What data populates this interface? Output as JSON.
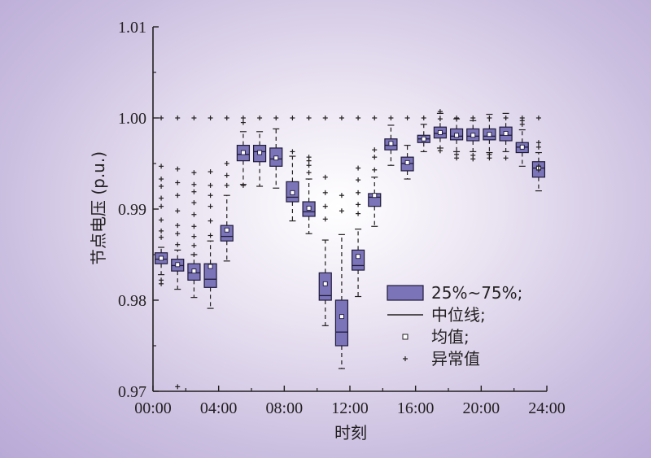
{
  "chart_data": {
    "type": "box",
    "xlabel": "时刻",
    "ylabel": "节点电压 (p.u.)",
    "ylim": [
      0.97,
      1.01
    ],
    "xlim": [
      0,
      24
    ],
    "yticks": [
      {
        "value": 0.97,
        "label": "0.97"
      },
      {
        "value": 0.98,
        "label": "0.98"
      },
      {
        "value": 0.99,
        "label": "0.99"
      },
      {
        "value": 1.0,
        "label": "1.00"
      },
      {
        "value": 1.01,
        "label": "1.01"
      }
    ],
    "xticks": [
      {
        "value": 0,
        "label": "00:00"
      },
      {
        "value": 4,
        "label": "04:00"
      },
      {
        "value": 8,
        "label": "08:00"
      },
      {
        "value": 12,
        "label": "12:00"
      },
      {
        "value": 16,
        "label": "16:00"
      },
      {
        "value": 20,
        "label": "20:00"
      },
      {
        "value": 24,
        "label": "24:00"
      }
    ],
    "box_color": "#7b74b8",
    "box_stroke": "#1f1a3a",
    "boxes": [
      {
        "x": 0.5,
        "wlow": 0.9828,
        "q1": 0.984,
        "median": 0.9845,
        "q3": 0.9852,
        "whigh": 0.9858,
        "mean": 0.9846,
        "outliers": [
          0.9822,
          0.9818,
          0.9869,
          0.9876,
          0.9888,
          0.9903,
          0.9912,
          0.9925,
          0.9933,
          0.9947,
          1.0
        ]
      },
      {
        "x": 1.5,
        "wlow": 0.9812,
        "q1": 0.9832,
        "median": 0.9838,
        "q3": 0.9845,
        "whigh": 0.9855,
        "mean": 0.9839,
        "outliers": [
          0.9705,
          0.9861,
          0.9873,
          0.9882,
          0.9898,
          0.9915,
          0.9929,
          0.9944,
          1.0
        ]
      },
      {
        "x": 2.5,
        "wlow": 0.9803,
        "q1": 0.9822,
        "median": 0.983,
        "q3": 0.984,
        "whigh": 0.985,
        "mean": 0.9832,
        "outliers": [
          0.985,
          0.986,
          0.987,
          0.9881,
          0.9894,
          0.9907,
          0.9919,
          0.9927,
          0.994,
          1.0
        ]
      },
      {
        "x": 3.5,
        "wlow": 0.9791,
        "q1": 0.9814,
        "median": 0.9823,
        "q3": 0.984,
        "whigh": 0.9865,
        "mean": 0.9837,
        "outliers": [
          0.9871,
          0.9887,
          0.9903,
          0.9915,
          0.9926,
          0.9941,
          1.0
        ]
      },
      {
        "x": 4.5,
        "wlow": 0.9843,
        "q1": 0.9865,
        "median": 0.987,
        "q3": 0.9882,
        "whigh": 0.9915,
        "mean": 0.9877,
        "outliers": [
          0.9926,
          0.9937,
          0.995,
          1.0
        ]
      },
      {
        "x": 5.5,
        "wlow": 0.9927,
        "q1": 0.9953,
        "median": 0.996,
        "q3": 0.997,
        "whigh": 0.9985,
        "mean": 0.9962,
        "outliers": [
          0.9926,
          0.9995,
          1.0
        ]
      },
      {
        "x": 6.5,
        "wlow": 0.9925,
        "q1": 0.9952,
        "median": 0.9963,
        "q3": 0.997,
        "whigh": 0.9985,
        "mean": 0.9962,
        "outliers": [
          1.0
        ]
      },
      {
        "x": 7.5,
        "wlow": 0.9923,
        "q1": 0.9947,
        "median": 0.9955,
        "q3": 0.9967,
        "whigh": 0.9988,
        "mean": 0.9956,
        "outliers": [
          1.0
        ]
      },
      {
        "x": 8.5,
        "wlow": 0.9887,
        "q1": 0.9908,
        "median": 0.9913,
        "q3": 0.993,
        "whigh": 0.9958,
        "mean": 0.9918,
        "outliers": [
          0.9963,
          1.0
        ]
      },
      {
        "x": 9.5,
        "wlow": 0.9873,
        "q1": 0.9892,
        "median": 0.9897,
        "q3": 0.9908,
        "whigh": 0.9933,
        "mean": 0.9901,
        "outliers": [
          0.994,
          0.9948,
          0.9953,
          0.9957,
          1.0
        ]
      },
      {
        "x": 10.5,
        "wlow": 0.9772,
        "q1": 0.98,
        "median": 0.9805,
        "q3": 0.983,
        "whigh": 0.9866,
        "mean": 0.9818,
        "outliers": [
          0.9889,
          0.9903,
          0.9918,
          0.9935,
          1.0
        ]
      },
      {
        "x": 11.5,
        "wlow": 0.9725,
        "q1": 0.975,
        "median": 0.9765,
        "q3": 0.98,
        "whigh": 0.9872,
        "mean": 0.9782,
        "outliers": [
          0.9898,
          0.9915,
          1.0
        ]
      },
      {
        "x": 12.5,
        "wlow": 0.9804,
        "q1": 0.9833,
        "median": 0.9838,
        "q3": 0.9855,
        "whigh": 0.9878,
        "mean": 0.9848,
        "outliers": [
          0.9895,
          0.9905,
          0.9918,
          0.9932,
          0.9945,
          1.0
        ]
      },
      {
        "x": 13.5,
        "wlow": 0.9881,
        "q1": 0.9903,
        "median": 0.9913,
        "q3": 0.9917,
        "whigh": 0.9935,
        "mean": 0.9915,
        "outliers": [
          0.9943,
          0.9957,
          0.9965,
          1.0
        ]
      },
      {
        "x": 14.5,
        "wlow": 0.9948,
        "q1": 0.9965,
        "median": 0.997,
        "q3": 0.9977,
        "whigh": 0.9992,
        "mean": 0.9972,
        "outliers": [
          1.0
        ]
      },
      {
        "x": 15.5,
        "wlow": 0.9933,
        "q1": 0.9942,
        "median": 0.995,
        "q3": 0.9957,
        "whigh": 0.997,
        "mean": 0.9951,
        "outliers": [
          1.0
        ]
      },
      {
        "x": 16.5,
        "wlow": 0.9963,
        "q1": 0.9973,
        "median": 0.9977,
        "q3": 0.9981,
        "whigh": 0.9993,
        "mean": 0.9977,
        "outliers": [
          1.0
        ]
      },
      {
        "x": 17.5,
        "wlow": 0.9967,
        "q1": 0.9978,
        "median": 0.9983,
        "q3": 0.999,
        "whigh": 1.0005,
        "mean": 0.9984,
        "outliers": [
          0.9964,
          0.9999,
          1.0007
        ]
      },
      {
        "x": 18.5,
        "wlow": 0.9963,
        "q1": 0.9976,
        "median": 0.998,
        "q3": 0.9988,
        "whigh": 0.9999,
        "mean": 0.9981,
        "outliers": [
          0.9956,
          0.996,
          1.0
        ]
      },
      {
        "x": 19.5,
        "wlow": 0.9963,
        "q1": 0.9975,
        "median": 0.998,
        "q3": 0.9988,
        "whigh": 0.9997,
        "mean": 0.9981,
        "outliers": [
          0.9955,
          0.9959,
          1.0
        ]
      },
      {
        "x": 20.5,
        "wlow": 0.9962,
        "q1": 0.9976,
        "median": 0.998,
        "q3": 0.9988,
        "whigh": 1.0004,
        "mean": 0.9982,
        "outliers": [
          0.9956,
          0.996,
          1.0
        ]
      },
      {
        "x": 21.5,
        "wlow": 0.9963,
        "q1": 0.9975,
        "median": 0.9981,
        "q3": 0.999,
        "whigh": 1.0005,
        "mean": 0.9983,
        "outliers": [
          0.9956,
          1.0
        ]
      },
      {
        "x": 22.5,
        "wlow": 0.9947,
        "q1": 0.9962,
        "median": 0.9968,
        "q3": 0.9973,
        "whigh": 0.9987,
        "mean": 0.9968,
        "outliers": [
          0.9993,
          0.9997,
          1.0
        ]
      },
      {
        "x": 23.5,
        "wlow": 0.992,
        "q1": 0.9935,
        "median": 0.9945,
        "q3": 0.9952,
        "whigh": 0.9962,
        "mean": 0.9945,
        "outliers": [
          0.9943,
          0.9947,
          0.9968,
          0.9973,
          1.0
        ]
      }
    ],
    "legend": [
      {
        "kind": "box",
        "label": "25%~75%;"
      },
      {
        "kind": "line",
        "label": "中位线;"
      },
      {
        "kind": "mean",
        "label": "均值;"
      },
      {
        "kind": "outlier",
        "label": "异常值"
      }
    ]
  }
}
